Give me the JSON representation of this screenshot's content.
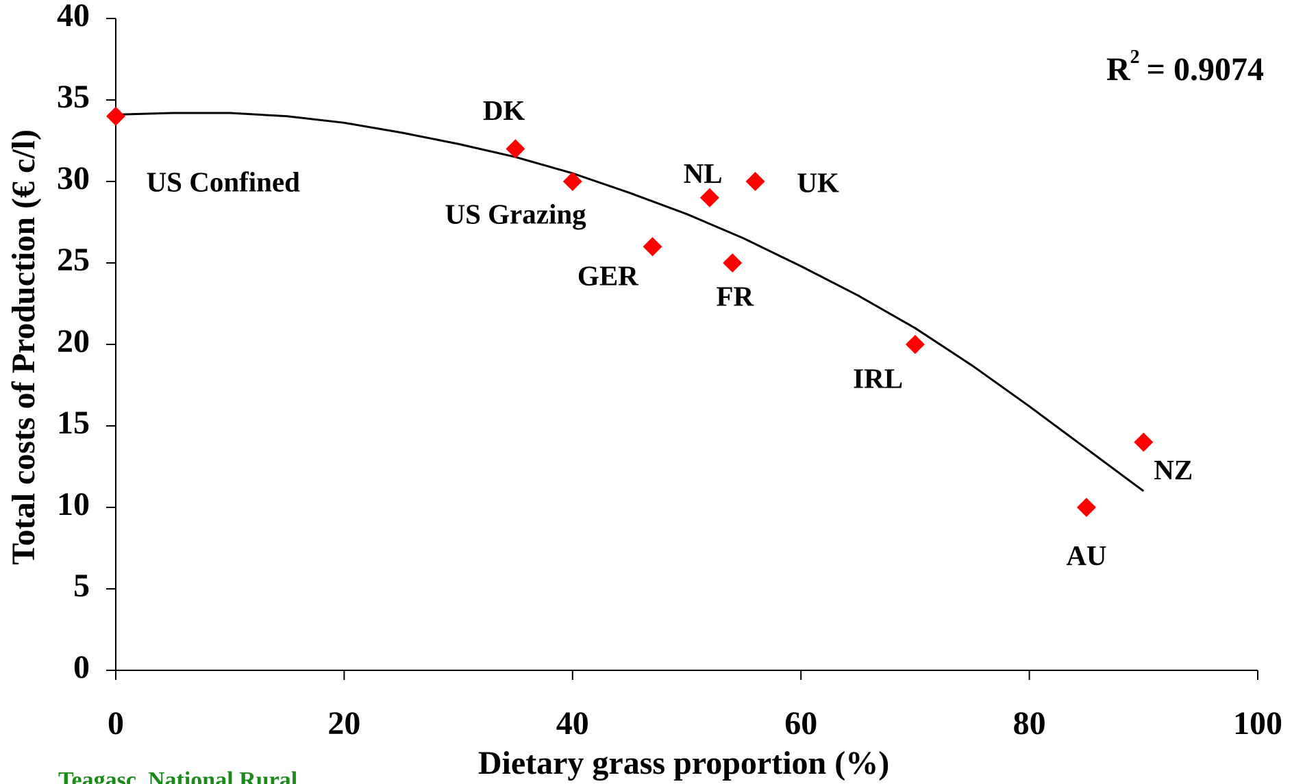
{
  "chart_data": {
    "type": "scatter",
    "xlabel": "Dietary grass proportion (%)",
    "ylabel": "Total costs of Production (€ c/l)",
    "annotation": {
      "base": "R",
      "sup": "2",
      "rest": "= 0.9074"
    },
    "footer": "Teagasc, National Rural",
    "points": [
      "US Confined",
      "DK",
      "US Grazing",
      "GER",
      "NL",
      "FR",
      "UK",
      "IRL",
      "AU",
      "NZ"
    ],
    "x": [
      0,
      35,
      40,
      47,
      52,
      54,
      56,
      70,
      85,
      90
    ],
    "values": [
      34,
      32,
      30,
      26,
      29,
      25,
      30,
      20,
      10,
      14
    ],
    "color": "#ff0000",
    "trendline": {
      "color": "#000000",
      "x": [
        0,
        5,
        10,
        15,
        20,
        25,
        30,
        35,
        40,
        45,
        50,
        55,
        60,
        65,
        70,
        75,
        80,
        85,
        90
      ],
      "values": [
        34.1,
        34.2,
        34.2,
        34.0,
        33.6,
        33.0,
        32.3,
        31.5,
        30.5,
        29.3,
        28.0,
        26.5,
        24.8,
        23.0,
        21.0,
        18.7,
        16.2,
        13.6,
        11.0
      ]
    },
    "xlim": [
      0,
      100
    ],
    "xticks": [
      0,
      20,
      40,
      60,
      80,
      100
    ],
    "ylim": [
      0,
      40
    ],
    "yticks": [
      0,
      5,
      10,
      15,
      20,
      25,
      30,
      35,
      40
    ]
  }
}
